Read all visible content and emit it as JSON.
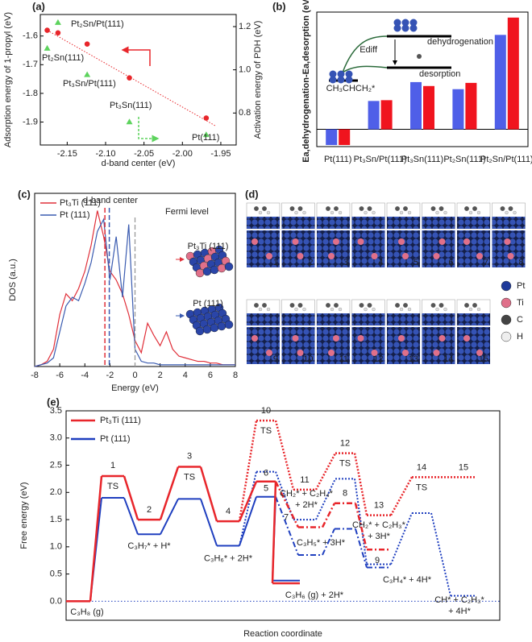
{
  "chart_data": [
    {
      "type": "scatter",
      "label": "(a)",
      "xlabel": "d-band center (eV)",
      "ylabel": "Adsorption energy of 1-propyl (eV)",
      "y2label": "Activation energy of PDH (eV)",
      "xlim": [
        -2.185,
        -1.93
      ],
      "xticks": [
        -2.15,
        {
          "value": -2.1,
          "label": "-2.10"
        },
        -2.05,
        {
          "value": -2,
          "label": "-2.00"
        },
        -1.95
      ],
      "ylim": [
        -1.98,
        -1.525
      ],
      "yticks": [
        -1.9,
        -1.8,
        -1.7,
        -1.6
      ],
      "y2lim": [
        0.652,
        1.256
      ],
      "y2ticks": [
        0.8,
        {
          "value": 1,
          "label": "1.0"
        },
        1.2
      ],
      "series": [
        {
          "color": "#e8262b",
          "x": [
            -2.176,
            -2.162,
            -2.124,
            -2.069,
            -1.969
          ],
          "values": [
            -1.58,
            -1.589,
            -1.628,
            -1.746,
            -1.886
          ]
        },
        {
          "color": "#5dd35d",
          "axis": "y2",
          "x": [
            -2.162,
            -2.176,
            -2.124,
            -2.069,
            -1.969
          ],
          "values": [
            1.219,
            1.1,
            0.978,
            0.759,
            0.7
          ]
        }
      ],
      "point_labels": [
        "Pt₂Sn/Pt(111)",
        "Pt₂Sn(111)",
        "Pt₃Sn/Pt(111)",
        "Pt₃Sn(111)",
        "Pt(111)"
      ]
    },
    {
      "type": "bar",
      "label": "(b)",
      "ylabel": "Ea,dehydrogenation-Ea,desorption (eV)",
      "categories": [
        "Pt(111)",
        "Pt₃Sn/Pt(111)",
        "Pt₃Sn(111)",
        "Pt₂Sn(111)",
        "Pt₂Sn/Pt(111)"
      ],
      "ylim": [
        -0.22,
        1.49
      ],
      "series": [
        {
          "color": "#4f5fe8",
          "values": [
            -0.2,
            0.36,
            0.6,
            0.51,
            1.2
          ]
        },
        {
          "color": "#f0141e",
          "values": [
            -0.2,
            0.37,
            0.55,
            0.59,
            1.42
          ]
        }
      ],
      "inset_labels": [
        "dehydrogenation",
        "desorption",
        "Ediff",
        "CH₃CHCH₂*"
      ]
    },
    {
      "type": "line",
      "label": "(c)",
      "xlabel": "Energy (eV)",
      "ylabel": "DOS (a.u.)",
      "x": [
        -8,
        -7.5,
        -7,
        -6.5,
        -6,
        -5.5,
        -5,
        -4.5,
        -4,
        -3.5,
        -3,
        -2.5,
        -2,
        -1.5,
        -1,
        -0.5,
        0,
        0.5,
        1,
        1.5,
        2,
        2.5,
        3,
        3.5,
        4,
        4.5,
        5,
        5.5,
        6,
        6.5,
        7,
        7.5,
        8
      ],
      "xlim": [
        -8,
        8
      ],
      "xticks": [
        -8,
        -6,
        -4,
        -2,
        0,
        2,
        4,
        6,
        8
      ],
      "ylim": [
        0,
        1
      ],
      "series": [
        {
          "name": "Pt₃Ti (111)",
          "color": "#e0303a",
          "values": [
            0,
            0.01,
            0.03,
            0.1,
            0.3,
            0.42,
            0.38,
            0.45,
            0.55,
            0.7,
            0.9,
            0.75,
            0.55,
            0.5,
            0.42,
            0.3,
            0.15,
            0.08,
            0.25,
            0.18,
            0.12,
            0.2,
            0.1,
            0.06,
            0.05,
            0.04,
            0.03,
            0.03,
            0.02,
            0.02,
            0.01,
            0.01,
            0.01
          ]
        },
        {
          "name": "Pt (111)",
          "color": "#3a5bb0",
          "values": [
            0,
            0.01,
            0.02,
            0.05,
            0.2,
            0.35,
            0.4,
            0.38,
            0.48,
            0.6,
            0.78,
            0.85,
            0.5,
            0.75,
            0.4,
            0.82,
            0.1,
            0.03,
            0.02,
            0.02,
            0.01,
            0.01,
            0.01,
            0.01,
            0.01,
            0.01,
            0.01,
            0.01,
            0.01,
            0.01,
            0.01,
            0.01,
            0.01
          ]
        }
      ],
      "d_band_centers": [
        -2.4,
        -2.05
      ],
      "fermi_level": 0,
      "annotations": [
        "d-band center",
        "Fermi level"
      ],
      "inset_labels": [
        "Pt₃Ti (111)",
        "Pt (111)"
      ]
    },
    {
      "type": "snapshots",
      "label": "(d)",
      "frames": [
        "1",
        "2",
        "3",
        "4",
        "5",
        "6",
        "7",
        "8",
        "9",
        "10",
        "11",
        "12",
        "13",
        "14",
        "15"
      ],
      "legend": [
        "Pt",
        "Ti",
        "C",
        "H"
      ],
      "legend_colors": [
        "#1f3a9a",
        "#e0708a",
        "#444444",
        "#eeeeee"
      ]
    },
    {
      "type": "energy-diagram",
      "label": "(e)",
      "ylabel": "Free energy (eV)",
      "xlabel": "Reaction coordinate",
      "ylim": [
        -0.35,
        3.5
      ],
      "yticks": [
        {
          "value": 0,
          "label": "0.0"
        },
        0.5,
        {
          "value": 1,
          "label": "1.0"
        },
        1.5,
        {
          "value": 2,
          "label": "2.0"
        },
        2.5,
        {
          "value": 3,
          "label": "3.0"
        },
        3.5
      ],
      "series": [
        {
          "name": "Pt₃Ti (111)",
          "color": "#e8262b",
          "values": [
            0,
            2.3,
            1.5,
            2.47,
            1.47,
            2.2,
            0.33
          ],
          "branch_values": [
            1.36,
            1.8,
            0.95
          ],
          "dotted_values": [
            3.32,
            2.05,
            2.72,
            1.58,
            2.28,
            2.28
          ]
        },
        {
          "name": "Pt (111)",
          "color": "#1f3fbf",
          "values": [
            0,
            1.9,
            1.23,
            1.88,
            1.02,
            1.92,
            0.38
          ],
          "branch_values": [
            0.85,
            1.33,
            0.62
          ],
          "dotted_values": [
            2.38,
            1.5,
            2.25,
            0.68,
            1.62,
            0.1
          ]
        }
      ],
      "state_numbers": [
        "1",
        "2",
        "3",
        "4",
        "5",
        "6",
        "7",
        "8",
        "9",
        "10",
        "11",
        "12",
        "13",
        "14",
        "15"
      ],
      "ts_label": "TS",
      "species": [
        [
          "C₃H₈ (g)"
        ],
        [
          "C₃H₇* + H*"
        ],
        [
          "C₃H₆* + 2H*"
        ],
        [
          "C₃H₆ (g) + 2H*"
        ],
        [
          "CH₂* + C₂H₄*",
          "+ 2H*"
        ],
        [
          "C₃H₅* + 3H*"
        ],
        [
          "CH₂* + C₂H₃*",
          "+ 3H*"
        ],
        [
          "C₃H₄* + 4H*"
        ],
        [
          "CH* + C₂H₃*",
          "+ 4H*"
        ]
      ]
    }
  ]
}
